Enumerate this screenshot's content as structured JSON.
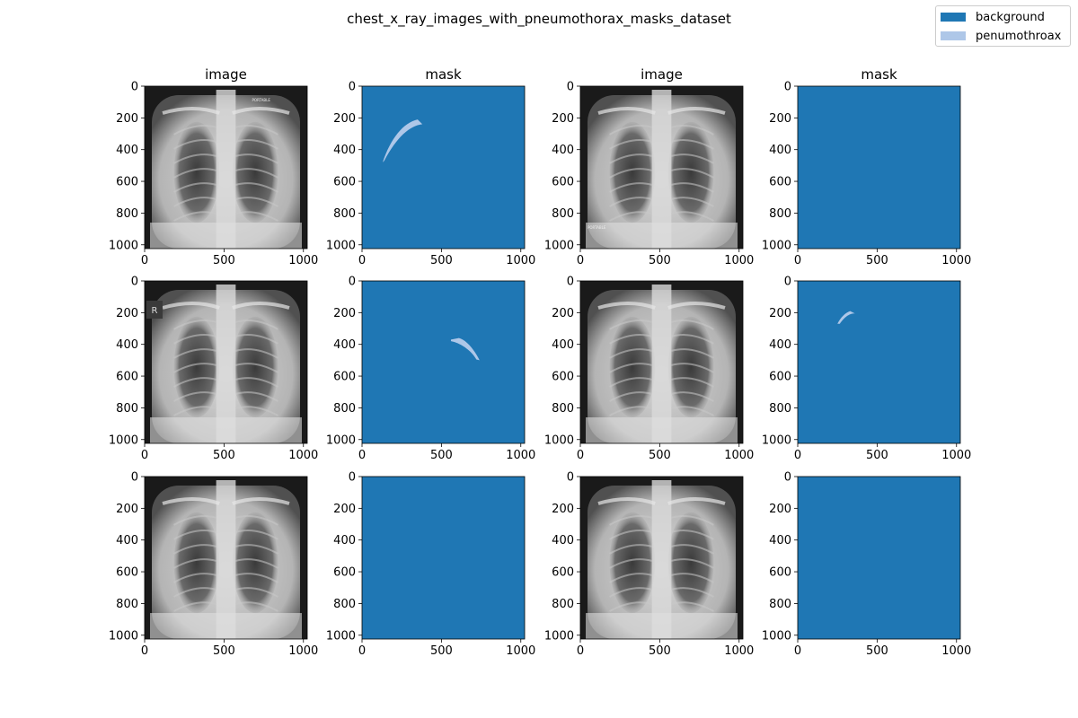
{
  "figure_title": "chest_x_ray_images_with_pneumothorax_masks_dataset",
  "legend": {
    "items": [
      {
        "label": "background",
        "color": "#1f77b4"
      },
      {
        "label": "penumothroax",
        "color": "#aec7e8"
      }
    ]
  },
  "chart_data": {
    "type": "image_grid",
    "rows": 3,
    "cols": 4,
    "column_titles": [
      "image",
      "mask",
      "image",
      "mask"
    ],
    "x_ticks": [
      "0",
      "500",
      "1000"
    ],
    "y_ticks": [
      "0",
      "200",
      "400",
      "600",
      "800",
      "1000"
    ],
    "axis_range": [
      0,
      1024
    ],
    "panels": [
      {
        "kind": "image",
        "annotations": [
          "PORTABLE"
        ]
      },
      {
        "kind": "mask",
        "pneumothorax": true
      },
      {
        "kind": "image",
        "annotations": [
          "PORTABLE"
        ]
      },
      {
        "kind": "mask",
        "pneumothorax": false
      },
      {
        "kind": "image",
        "annotations": [
          "R"
        ]
      },
      {
        "kind": "mask",
        "pneumothorax": true
      },
      {
        "kind": "image",
        "annotations": []
      },
      {
        "kind": "mask",
        "pneumothorax": true
      },
      {
        "kind": "image",
        "annotations": []
      },
      {
        "kind": "mask",
        "pneumothorax": false
      },
      {
        "kind": "image",
        "annotations": []
      },
      {
        "kind": "mask",
        "pneumothorax": false
      }
    ]
  }
}
